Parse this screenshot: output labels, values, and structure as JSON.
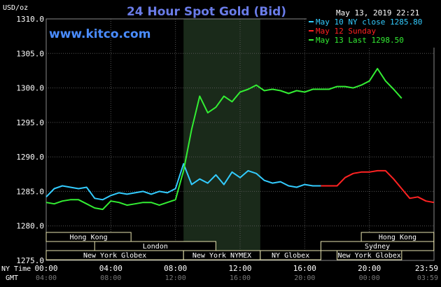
{
  "chart_data": {
    "type": "line",
    "title": "24 Hour Spot Gold (Bid)",
    "website": "www.kitco.com",
    "date_time": "May 13, 2019 22:21",
    "ylabel": "USD/oz",
    "ylim": [
      1275.0,
      1310.0
    ],
    "y_ticks": [
      "1275.0",
      "1280.0",
      "1285.0",
      "1290.0",
      "1295.0",
      "1300.0",
      "1305.0",
      "1310.0"
    ],
    "x_axis_ny_label": "NY Time",
    "x_axis_gmt_label": "GMT",
    "x_ticks_ny": [
      "00:00",
      "04:00",
      "08:00",
      "12:00",
      "16:00",
      "20:00",
      "23:59"
    ],
    "x_ticks_gmt": [
      "04:00",
      "08:00",
      "12:00",
      "16:00",
      "20:00",
      "00:00",
      "03:59"
    ],
    "xlim": [
      0,
      24
    ],
    "grid": true,
    "legend_position": "top-right",
    "legend": [
      {
        "label": "May 10 NY close 1285.80",
        "color": "#33ccff"
      },
      {
        "label": "May 12 Sunday",
        "color": "#ff2222"
      },
      {
        "label": "May 13 Last 1298.50",
        "color": "#33ee33"
      }
    ],
    "shaded_region": {
      "from": 8.5,
      "to": 13.25,
      "color": "#1a2a1a"
    },
    "series": [
      {
        "name": "May 10 NY close 1285.80",
        "color": "#33ccff",
        "x": [
          0,
          0.5,
          1,
          1.5,
          2,
          2.5,
          3,
          3.5,
          4,
          4.5,
          5,
          5.5,
          6,
          6.5,
          7,
          7.5,
          8,
          8.5,
          9,
          9.5,
          10,
          10.5,
          11,
          11.5,
          12,
          12.5,
          13,
          13.5,
          14,
          14.5,
          15,
          15.5,
          16,
          16.5,
          17
        ],
        "y": [
          1284.2,
          1285.4,
          1285.8,
          1285.6,
          1285.4,
          1285.6,
          1284.0,
          1283.8,
          1284.4,
          1284.8,
          1284.6,
          1284.8,
          1285.0,
          1284.6,
          1285.0,
          1284.8,
          1285.4,
          1289.0,
          1286.0,
          1286.8,
          1286.2,
          1287.4,
          1286.0,
          1287.8,
          1287.0,
          1288.0,
          1287.6,
          1286.6,
          1286.2,
          1286.4,
          1285.8,
          1285.6,
          1286.0,
          1285.8,
          1285.8
        ]
      },
      {
        "name": "May 12 Sunday",
        "color": "#ff2222",
        "x": [
          17,
          18,
          18.5,
          19,
          19.5,
          20,
          20.5,
          21,
          21.5,
          22,
          22.5,
          23,
          23.5,
          23.99
        ],
        "y": [
          1285.8,
          1285.8,
          1287.0,
          1287.6,
          1287.8,
          1287.8,
          1288.0,
          1288.0,
          1286.8,
          1285.4,
          1284.0,
          1284.2,
          1283.6,
          1283.4
        ]
      },
      {
        "name": "May 13 Last 1298.50",
        "color": "#33ee33",
        "x": [
          0,
          0.5,
          1,
          1.5,
          2,
          2.5,
          3,
          3.5,
          4,
          4.5,
          5,
          5.5,
          6,
          6.5,
          7,
          7.5,
          8,
          8.5,
          9,
          9.5,
          10,
          10.5,
          11,
          11.5,
          12,
          12.5,
          13,
          13.5,
          14,
          14.5,
          15,
          15.5,
          16,
          16.5,
          17,
          17.5,
          18,
          18.5,
          19,
          19.5,
          20,
          20.5,
          21,
          21.5,
          22
        ],
        "y": [
          1283.4,
          1283.2,
          1283.6,
          1283.8,
          1283.8,
          1283.2,
          1282.6,
          1282.4,
          1283.6,
          1283.4,
          1283.0,
          1283.2,
          1283.4,
          1283.4,
          1283.0,
          1283.4,
          1283.8,
          1288.0,
          1294.0,
          1298.8,
          1296.4,
          1297.2,
          1298.8,
          1298.0,
          1299.4,
          1299.8,
          1300.4,
          1299.6,
          1299.8,
          1299.6,
          1299.2,
          1299.6,
          1299.4,
          1299.8,
          1299.8,
          1299.8,
          1300.2,
          1300.2,
          1300.0,
          1300.4,
          1301.0,
          1302.8,
          1301.0,
          1299.8,
          1298.5
        ]
      }
    ],
    "market_sessions": [
      {
        "label": "Hong Kong",
        "from": 0,
        "to": 5.25
      },
      {
        "label": "London",
        "from": 3,
        "to": 10.5
      },
      {
        "label": "New York Globex",
        "from": 0,
        "to": 8.5
      },
      {
        "label": "New York NYMEX",
        "from": 8.5,
        "to": 13.25
      },
      {
        "label": "NY Globex",
        "from": 13.25,
        "to": 17
      },
      {
        "label": "Hong Kong",
        "from": 19.5,
        "to": 23.99
      },
      {
        "label": "Sydney",
        "from": 17,
        "to": 23.99
      },
      {
        "label": "New York Globex",
        "from": 18,
        "to": 22
      }
    ]
  }
}
